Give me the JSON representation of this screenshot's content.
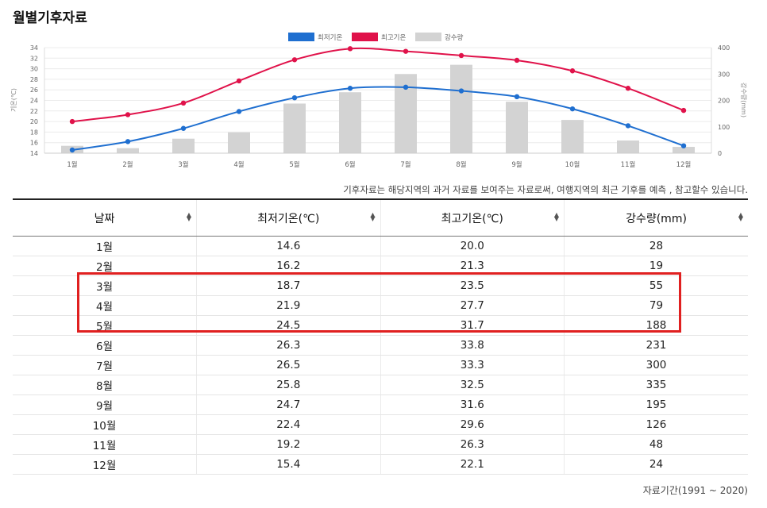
{
  "page_title": "월별기후자료",
  "note": "기후자료는 해당지역의 과거 자료를 보여주는 자료로써, 여행지역의 최근 기후를 예측 , 참고할수 있습니다.",
  "period": "자료기간(1991 ~ 2020)",
  "table": {
    "headers": [
      "날짜",
      "최저기온(℃)",
      "최고기온(℃)",
      "강수량(mm)"
    ],
    "rows": [
      [
        "1월",
        "14.6",
        "20.0",
        "28"
      ],
      [
        "2월",
        "16.2",
        "21.3",
        "19"
      ],
      [
        "3월",
        "18.7",
        "23.5",
        "55"
      ],
      [
        "4월",
        "21.9",
        "27.7",
        "79"
      ],
      [
        "5월",
        "24.5",
        "31.7",
        "188"
      ],
      [
        "6월",
        "26.3",
        "33.8",
        "231"
      ],
      [
        "7월",
        "26.5",
        "33.3",
        "300"
      ],
      [
        "8월",
        "25.8",
        "32.5",
        "335"
      ],
      [
        "9월",
        "24.7",
        "31.6",
        "195"
      ],
      [
        "10월",
        "22.4",
        "29.6",
        "126"
      ],
      [
        "11월",
        "19.2",
        "26.3",
        "48"
      ],
      [
        "12월",
        "15.4",
        "22.1",
        "24"
      ]
    ]
  },
  "chart_data": {
    "type": "line",
    "categories": [
      "1월",
      "2월",
      "3월",
      "4월",
      "5월",
      "6월",
      "7월",
      "8월",
      "9월",
      "10월",
      "11월",
      "12월"
    ],
    "series": [
      {
        "name": "최저기온",
        "type": "line",
        "axis": "left",
        "color": "#1f6fd0",
        "values": [
          14.6,
          16.2,
          18.7,
          21.9,
          24.5,
          26.3,
          26.5,
          25.8,
          24.7,
          22.4,
          19.2,
          15.4
        ]
      },
      {
        "name": "최고기온",
        "type": "line",
        "axis": "left",
        "color": "#e0124a",
        "values": [
          20.0,
          21.3,
          23.5,
          27.7,
          31.7,
          33.8,
          33.3,
          32.5,
          31.6,
          29.6,
          26.3,
          22.1
        ]
      },
      {
        "name": "강수량",
        "type": "bar",
        "axis": "right",
        "color": "#d3d3d3",
        "values": [
          28,
          19,
          55,
          79,
          188,
          231,
          300,
          335,
          195,
          126,
          48,
          24
        ]
      }
    ],
    "ylabel": "기온(℃)",
    "y2label": "강수량(mm)",
    "ylim": [
      14,
      34
    ],
    "y2lim": [
      0,
      400
    ],
    "yticks": [
      "14",
      "16",
      "18",
      "20",
      "22",
      "24",
      "26",
      "28",
      "30",
      "32",
      "34"
    ],
    "y2ticks": [
      "0",
      "100",
      "200",
      "300",
      "400"
    ],
    "grid": true,
    "legend": "top-center"
  }
}
